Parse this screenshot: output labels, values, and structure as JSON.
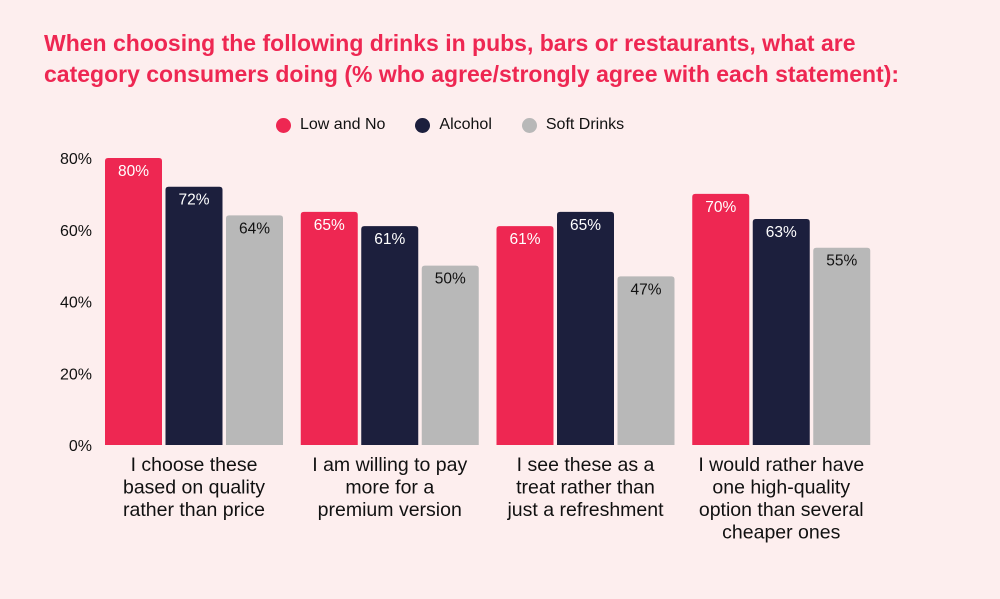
{
  "chart_data": {
    "type": "bar",
    "title_lines": [
      "When choosing the following drinks in pubs, bars or restaurants, what are",
      "category consumers doing (% who agree/strongly agree with each statement):"
    ],
    "categories": [
      [
        "I choose these",
        "based on quality",
        "rather than price"
      ],
      [
        "I am willing to pay",
        "more for a",
        "premium version"
      ],
      [
        "I see these as a",
        "treat rather than",
        "just a refreshment"
      ],
      [
        "I would rather have",
        "one high-quality",
        "option than several",
        "cheaper ones"
      ]
    ],
    "series": [
      {
        "name": "Low and No",
        "color": "#ee2752",
        "label_color": "#ffffff",
        "values": [
          80,
          65,
          61,
          70
        ]
      },
      {
        "name": "Alcohol",
        "color": "#1c1f3d",
        "label_color": "#ffffff",
        "values": [
          72,
          61,
          65,
          63
        ]
      },
      {
        "name": "Soft Drinks",
        "color": "#b8b8b8",
        "label_color": "#111111",
        "values": [
          64,
          50,
          47,
          55
        ]
      }
    ],
    "value_suffix": "%",
    "yticks": [
      "0%",
      "20%",
      "40%",
      "60%",
      "80%"
    ],
    "ylim": [
      0,
      80
    ],
    "legend_position": "top-center",
    "grid": false
  }
}
